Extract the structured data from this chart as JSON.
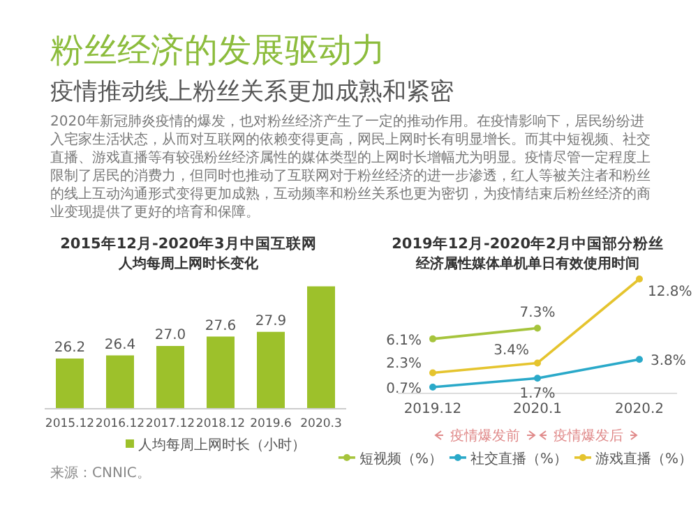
{
  "chart_data": [
    {
      "type": "other",
      "title": "粉丝经济的发展驱动力",
      "subtitle": "疫情推动线上粉丝关系更加成熟和紧密",
      "annotations": [
        "2020年新冠肺炎疫情的爆发，也对粉丝经济产生了一定的推动作用。在疫情影响下，居民纷纷进入宅家生活状态，从而对互联网的依赖变得更高，网民上网时长有明显增长。而其中短视频、社交直播、游戏直播等有较强粉丝经济属性的媒体类型的上网时长增幅尤为明显。疫情尽管一定程度上限制了居民的消费力，但同时也推动了互联网对于粉丝经济的进一步渗透，红人等被关注者和粉丝的线上互动沟通形式变得更加成熟，互动频率和粉丝关系也更为密切，为疫情结束后粉丝经济的商业变现提供了更好的培育和保障。"
      ]
    },
    {
      "type": "bar",
      "title": "2015年12月-2020年3月中国互联网",
      "subtitle": "人均每周上网时长变化",
      "categories": [
        "2015.12",
        "2016.12",
        "2017.12",
        "2018.12",
        "2019.6",
        "2020.3"
      ],
      "series": [
        {
          "name": "人均每周上网时长（小时）",
          "color": "#9dc12b",
          "values": [
            26.2,
            26.4,
            27.0,
            27.6,
            27.9,
            30.8
          ],
          "value_labels": [
            "26.2",
            "26.4",
            "27.0",
            "27.6",
            "27.9",
            null
          ]
        }
      ],
      "ylim": [
        23,
        31
      ],
      "legend": "bottom",
      "annotations": [
        "来源：CNNIC。"
      ]
    },
    {
      "type": "line",
      "title": "2019年12月-2020年2月中国部分粉丝",
      "subtitle": "经济属性媒体单机单日有效使用时间",
      "categories": [
        "2019.12",
        "2020.1",
        "2020.2"
      ],
      "series": [
        {
          "name": "短视频（%）",
          "color": "#a6c43c",
          "values": [
            6.1,
            7.3,
            null
          ],
          "value_labels": [
            "6.1%",
            "7.3%",
            null
          ]
        },
        {
          "name": "社交直播（%）",
          "color": "#2aa9c9",
          "values": [
            0.7,
            1.7,
            3.8
          ],
          "value_labels": [
            "0.7%",
            "1.7%",
            "3.8%"
          ]
        },
        {
          "name": "游戏直播（%）",
          "color": "#e5c42e",
          "values": [
            2.3,
            3.4,
            12.8
          ],
          "value_labels": [
            "2.3%",
            "3.4%",
            "12.8%"
          ]
        }
      ],
      "marker": "circle",
      "legend": "bottom",
      "annotations": [
        "疫情爆发前",
        "疫情爆发后"
      ]
    }
  ]
}
